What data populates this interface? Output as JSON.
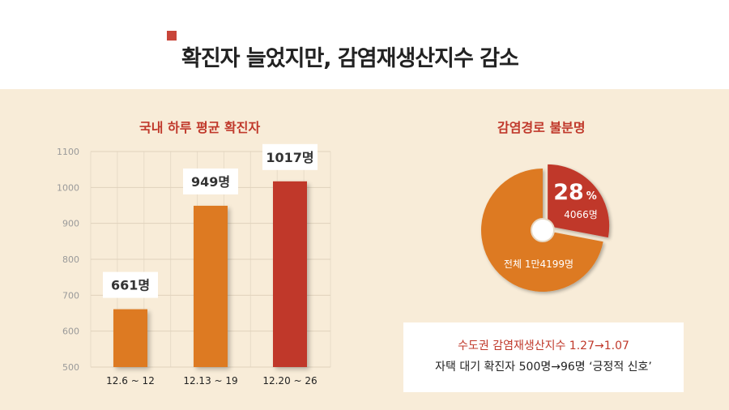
{
  "header": {
    "title": "확진자 늘었지만, 감염재생산지수 감소"
  },
  "bar_chart": {
    "title": "국내 하루 평균 확진자",
    "labels": [
      "661명",
      "949명",
      "1017명"
    ]
  },
  "pie_chart": {
    "title": "감염경로 불분명",
    "pct_value": "28",
    "pct_unit": "%",
    "slice_label": "4066명",
    "total_label": "전체 1만4199명"
  },
  "info": {
    "line1": "수도권 감염재생산지수 1.27→1.07",
    "line2": "자택 대기 확진자 500명→96명 ‘긍정적 신호’"
  },
  "colors": {
    "accent_red": "#c0392b",
    "orange": "#dd7a22",
    "panel_bg": "#f8ecd8"
  },
  "chart_data": [
    {
      "type": "bar",
      "title": "국내 하루 평균 확진자",
      "categories": [
        "12.6 ~ 12",
        "12.13 ~ 19",
        "12.20 ~ 26"
      ],
      "values": [
        661,
        949,
        1017
      ],
      "ylim": [
        500,
        1100
      ],
      "yticks": [
        500,
        600,
        700,
        800,
        900,
        1000,
        1100
      ],
      "grid": true,
      "bar_colors": [
        "#dd7a22",
        "#dd7a22",
        "#c0392b"
      ]
    },
    {
      "type": "pie",
      "title": "감염경로 불분명",
      "slices": [
        {
          "label": "4066명",
          "value": 28,
          "color": "#c0392b"
        },
        {
          "label": "전체 1만4199명",
          "value": 72,
          "color": "#dd7a22"
        }
      ]
    }
  ]
}
